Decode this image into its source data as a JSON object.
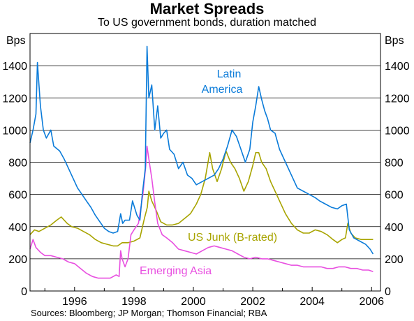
{
  "chart_data": {
    "type": "line",
    "title": "Market Spreads",
    "subtitle": "To US government bonds, duration matched",
    "ylabel_left": "Bps",
    "ylabel_right": "Bps",
    "ylim": [
      0,
      1600
    ],
    "yticks": [
      0,
      200,
      400,
      600,
      800,
      1000,
      1200,
      1400
    ],
    "xlim": [
      1994.5,
      2006.3
    ],
    "xticks": [
      1996,
      1998,
      2000,
      2002,
      2004,
      2006
    ],
    "grid": "horizontal",
    "source": "Sources: Bloomberg; JP Morgan; Thomson Financial; RBA",
    "series": [
      {
        "name": "Latin America",
        "label_lines": [
          "Latin",
          "America"
        ],
        "color": "#0a7bd9",
        "points": [
          [
            1994.5,
            920
          ],
          [
            1994.6,
            1000
          ],
          [
            1994.7,
            1100
          ],
          [
            1994.75,
            1420
          ],
          [
            1994.85,
            1150
          ],
          [
            1994.95,
            1000
          ],
          [
            1995.05,
            950
          ],
          [
            1995.2,
            1000
          ],
          [
            1995.3,
            900
          ],
          [
            1995.5,
            870
          ],
          [
            1995.65,
            820
          ],
          [
            1995.8,
            760
          ],
          [
            1995.95,
            700
          ],
          [
            1996.1,
            640
          ],
          [
            1996.25,
            600
          ],
          [
            1996.4,
            560
          ],
          [
            1996.55,
            520
          ],
          [
            1996.7,
            470
          ],
          [
            1996.85,
            430
          ],
          [
            1997.0,
            390
          ],
          [
            1997.15,
            370
          ],
          [
            1997.3,
            360
          ],
          [
            1997.45,
            370
          ],
          [
            1997.55,
            480
          ],
          [
            1997.62,
            420
          ],
          [
            1997.7,
            440
          ],
          [
            1997.85,
            440
          ],
          [
            1997.95,
            560
          ],
          [
            1998.1,
            470
          ],
          [
            1998.2,
            440
          ],
          [
            1998.28,
            600
          ],
          [
            1998.38,
            760
          ],
          [
            1998.44,
            1520
          ],
          [
            1998.5,
            1200
          ],
          [
            1998.6,
            1280
          ],
          [
            1998.7,
            1000
          ],
          [
            1998.8,
            1150
          ],
          [
            1998.9,
            950
          ],
          [
            1999.0,
            980
          ],
          [
            1999.1,
            1000
          ],
          [
            1999.2,
            880
          ],
          [
            1999.35,
            850
          ],
          [
            1999.5,
            760
          ],
          [
            1999.65,
            800
          ],
          [
            1999.8,
            720
          ],
          [
            1999.95,
            700
          ],
          [
            2000.1,
            660
          ],
          [
            2000.3,
            680
          ],
          [
            2000.5,
            700
          ],
          [
            2000.7,
            720
          ],
          [
            2000.85,
            760
          ],
          [
            2001.0,
            820
          ],
          [
            2001.15,
            900
          ],
          [
            2001.3,
            1000
          ],
          [
            2001.45,
            960
          ],
          [
            2001.6,
            880
          ],
          [
            2001.75,
            800
          ],
          [
            2001.9,
            880
          ],
          [
            2002.0,
            1050
          ],
          [
            2002.1,
            1150
          ],
          [
            2002.2,
            1270
          ],
          [
            2002.3,
            1190
          ],
          [
            2002.4,
            1120
          ],
          [
            2002.5,
            1070
          ],
          [
            2002.6,
            1000
          ],
          [
            2002.75,
            980
          ],
          [
            2002.9,
            880
          ],
          [
            2003.1,
            800
          ],
          [
            2003.3,
            720
          ],
          [
            2003.5,
            640
          ],
          [
            2003.7,
            620
          ],
          [
            2003.9,
            600
          ],
          [
            2004.1,
            580
          ],
          [
            2004.25,
            560
          ],
          [
            2004.45,
            540
          ],
          [
            2004.65,
            520
          ],
          [
            2004.85,
            510
          ],
          [
            2005.0,
            530
          ],
          [
            2005.15,
            540
          ],
          [
            2005.25,
            380
          ],
          [
            2005.4,
            330
          ],
          [
            2005.6,
            310
          ],
          [
            2005.8,
            290
          ],
          [
            2005.95,
            260
          ],
          [
            2006.05,
            230
          ]
        ]
      },
      {
        "name": "US Junk (B-rated)",
        "color": "#a8a400",
        "points": [
          [
            1994.5,
            350
          ],
          [
            1994.65,
            380
          ],
          [
            1994.8,
            370
          ],
          [
            1995.0,
            390
          ],
          [
            1995.2,
            410
          ],
          [
            1995.4,
            440
          ],
          [
            1995.55,
            460
          ],
          [
            1995.75,
            420
          ],
          [
            1995.9,
            400
          ],
          [
            1996.1,
            390
          ],
          [
            1996.3,
            370
          ],
          [
            1996.5,
            350
          ],
          [
            1996.7,
            320
          ],
          [
            1996.9,
            300
          ],
          [
            1997.1,
            290
          ],
          [
            1997.3,
            280
          ],
          [
            1997.45,
            280
          ],
          [
            1997.6,
            300
          ],
          [
            1997.8,
            300
          ],
          [
            1998.0,
            310
          ],
          [
            1998.2,
            330
          ],
          [
            1998.35,
            450
          ],
          [
            1998.45,
            520
          ],
          [
            1998.5,
            620
          ],
          [
            1998.6,
            560
          ],
          [
            1998.75,
            500
          ],
          [
            1998.9,
            430
          ],
          [
            1999.1,
            410
          ],
          [
            1999.3,
            410
          ],
          [
            1999.5,
            420
          ],
          [
            1999.7,
            450
          ],
          [
            1999.9,
            480
          ],
          [
            2000.1,
            540
          ],
          [
            2000.25,
            600
          ],
          [
            2000.4,
            700
          ],
          [
            2000.55,
            860
          ],
          [
            2000.65,
            760
          ],
          [
            2000.8,
            680
          ],
          [
            2000.95,
            760
          ],
          [
            2001.1,
            870
          ],
          [
            2001.25,
            800
          ],
          [
            2001.4,
            760
          ],
          [
            2001.55,
            700
          ],
          [
            2001.7,
            620
          ],
          [
            2001.85,
            680
          ],
          [
            2002.0,
            780
          ],
          [
            2002.1,
            860
          ],
          [
            2002.2,
            860
          ],
          [
            2002.3,
            800
          ],
          [
            2002.45,
            760
          ],
          [
            2002.6,
            680
          ],
          [
            2002.75,
            620
          ],
          [
            2002.9,
            560
          ],
          [
            2003.1,
            480
          ],
          [
            2003.3,
            420
          ],
          [
            2003.5,
            380
          ],
          [
            2003.7,
            360
          ],
          [
            2003.9,
            360
          ],
          [
            2004.1,
            380
          ],
          [
            2004.3,
            370
          ],
          [
            2004.5,
            350
          ],
          [
            2004.7,
            320
          ],
          [
            2004.85,
            300
          ],
          [
            2005.0,
            320
          ],
          [
            2005.12,
            330
          ],
          [
            2005.2,
            420
          ],
          [
            2005.3,
            360
          ],
          [
            2005.45,
            330
          ],
          [
            2005.65,
            320
          ],
          [
            2005.85,
            320
          ],
          [
            2006.05,
            320
          ]
        ]
      },
      {
        "name": "Emerging Asia",
        "color": "#e84fe0",
        "points": [
          [
            1994.5,
            260
          ],
          [
            1994.6,
            320
          ],
          [
            1994.7,
            270
          ],
          [
            1994.85,
            240
          ],
          [
            1995.0,
            220
          ],
          [
            1995.2,
            220
          ],
          [
            1995.4,
            210
          ],
          [
            1995.6,
            200
          ],
          [
            1995.8,
            180
          ],
          [
            1996.0,
            170
          ],
          [
            1996.2,
            140
          ],
          [
            1996.4,
            110
          ],
          [
            1996.6,
            90
          ],
          [
            1996.8,
            80
          ],
          [
            1997.0,
            80
          ],
          [
            1997.2,
            80
          ],
          [
            1997.4,
            100
          ],
          [
            1997.5,
            90
          ],
          [
            1997.55,
            250
          ],
          [
            1997.6,
            200
          ],
          [
            1997.7,
            150
          ],
          [
            1997.8,
            200
          ],
          [
            1997.9,
            350
          ],
          [
            1998.0,
            380
          ],
          [
            1998.15,
            420
          ],
          [
            1998.3,
            600
          ],
          [
            1998.4,
            780
          ],
          [
            1998.44,
            900
          ],
          [
            1998.5,
            820
          ],
          [
            1998.6,
            700
          ],
          [
            1998.7,
            550
          ],
          [
            1998.8,
            420
          ],
          [
            1998.95,
            350
          ],
          [
            1999.1,
            330
          ],
          [
            1999.3,
            300
          ],
          [
            1999.5,
            260
          ],
          [
            1999.7,
            250
          ],
          [
            1999.9,
            240
          ],
          [
            2000.1,
            230
          ],
          [
            2000.3,
            250
          ],
          [
            2000.5,
            270
          ],
          [
            2000.7,
            280
          ],
          [
            2000.9,
            270
          ],
          [
            2001.1,
            260
          ],
          [
            2001.3,
            250
          ],
          [
            2001.5,
            230
          ],
          [
            2001.7,
            210
          ],
          [
            2001.9,
            200
          ],
          [
            2002.1,
            210
          ],
          [
            2002.3,
            200
          ],
          [
            2002.5,
            200
          ],
          [
            2002.7,
            190
          ],
          [
            2002.9,
            180
          ],
          [
            2003.1,
            170
          ],
          [
            2003.3,
            160
          ],
          [
            2003.5,
            160
          ],
          [
            2003.7,
            150
          ],
          [
            2003.9,
            150
          ],
          [
            2004.1,
            150
          ],
          [
            2004.3,
            150
          ],
          [
            2004.5,
            140
          ],
          [
            2004.7,
            140
          ],
          [
            2004.9,
            150
          ],
          [
            2005.1,
            150
          ],
          [
            2005.3,
            140
          ],
          [
            2005.5,
            140
          ],
          [
            2005.7,
            130
          ],
          [
            2005.9,
            130
          ],
          [
            2006.05,
            120
          ]
        ]
      }
    ]
  }
}
